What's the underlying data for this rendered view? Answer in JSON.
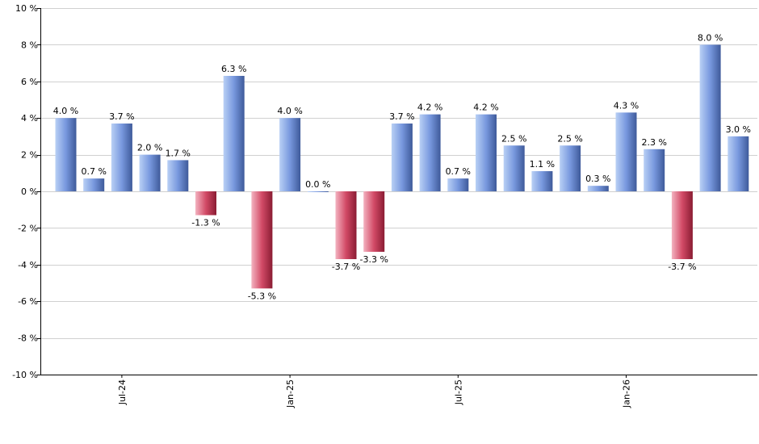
{
  "chart_data": {
    "type": "bar",
    "title": "",
    "xlabel": "",
    "ylabel": "",
    "ylim": [
      -10,
      10
    ],
    "y_ticks": [
      10,
      8,
      6,
      4,
      2,
      0,
      -2,
      -4,
      -6,
      -8,
      -10
    ],
    "y_tick_suffix": " %",
    "x_tick_labels": [
      "Jul-24",
      "Jan-25",
      "Jul-25",
      "Jan-26"
    ],
    "x_tick_positions": [
      2,
      8,
      14,
      20
    ],
    "grid": true,
    "values": [
      4.0,
      0.7,
      3.7,
      2.0,
      1.7,
      -1.3,
      6.3,
      -5.3,
      4.0,
      0.0,
      -3.7,
      -3.3,
      3.7,
      4.2,
      0.7,
      4.2,
      2.5,
      1.1,
      2.5,
      0.3,
      4.3,
      2.3,
      -3.7,
      8.0,
      3.0
    ],
    "value_labels": [
      "4.0 %",
      "0.7 %",
      "3.7 %",
      "2.0 %",
      "1.7 %",
      "-1.3 %",
      "6.3 %",
      "-5.3 %",
      "4.0 %",
      "0.0 %",
      "-3.7 %",
      "-3.3 %",
      "3.7 %",
      "4.2 %",
      "0.7 %",
      "4.2 %",
      "2.5 %",
      "1.1 %",
      "2.5 %",
      "0.3 %",
      "4.3 %",
      "2.3 %",
      "-3.7 %",
      "8.0 %",
      "3.0 %"
    ],
    "colors": {
      "positive_light": "#b9d0f5",
      "positive_mid": "#7898de",
      "positive_dark": "#3e5a9a",
      "negative_light": "#f3b3c0",
      "negative_mid": "#d24a66",
      "negative_dark": "#8a1c33",
      "grid": "#d0d0d0",
      "axis": "#000000"
    }
  }
}
